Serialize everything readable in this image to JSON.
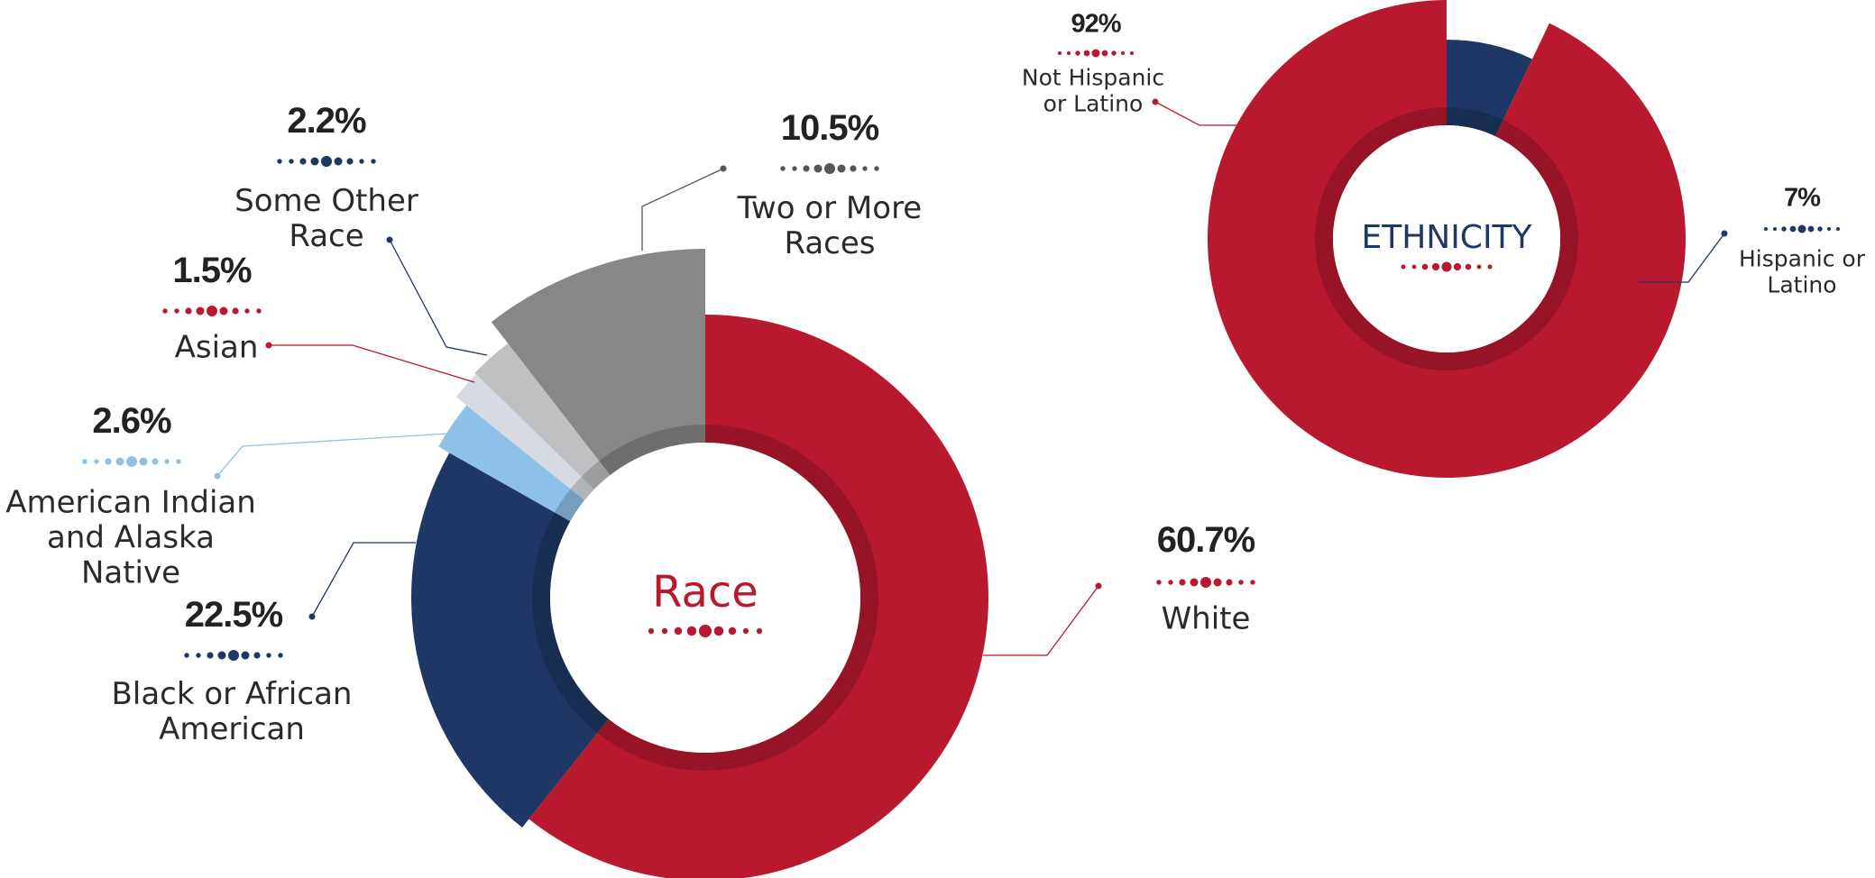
{
  "chart_data": [
    {
      "type": "pie",
      "title": "Race",
      "categories": [
        "White",
        "Black or African American",
        "American Indian and Alaska Native",
        "Asian",
        "Some Other Race",
        "Two or More Races"
      ],
      "values": [
        60.7,
        22.5,
        2.6,
        1.5,
        2.2,
        10.5
      ],
      "value_labels": [
        "60.7%",
        "22.5%",
        "2.6%",
        "1.5%",
        "2.2%",
        "10.5%"
      ],
      "colors": [
        "#b9192f",
        "#1e3764",
        "#8fc1e8",
        "#d6dbe3",
        "#bfc0c2",
        "#878787"
      ]
    },
    {
      "type": "pie",
      "title": "ETHNICITY",
      "categories": [
        "Hispanic or Latino",
        "Not Hispanic or Latino"
      ],
      "values": [
        7,
        92
      ],
      "value_labels": [
        "7%",
        "92%"
      ],
      "colors": [
        "#1e3764",
        "#b9192f"
      ]
    }
  ]
}
